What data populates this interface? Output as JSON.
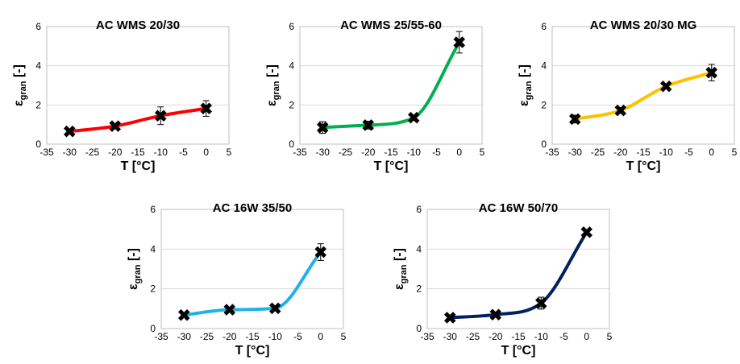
{
  "chart_data": [
    {
      "type": "line",
      "title": "AC WMS 20/30",
      "xlabel": "T [°C]",
      "ylabel": "ε",
      "ylabel_sub": "gran",
      "ylabel_suffix": " [-]",
      "xlim": [
        -35,
        5
      ],
      "ylim": [
        0,
        6
      ],
      "xticks": [
        -35,
        -30,
        -25,
        -20,
        -15,
        -10,
        -5,
        0,
        5
      ],
      "yticks": [
        0,
        2,
        4,
        6
      ],
      "grid": "horizontal",
      "color": "#ff0000",
      "x": [
        -30,
        -20,
        -10,
        0
      ],
      "y": [
        0.65,
        0.92,
        1.45,
        1.82
      ],
      "error": [
        0.12,
        0.1,
        0.45,
        0.4
      ]
    },
    {
      "type": "line",
      "title": "AC WMS 25/55-60",
      "xlabel": "T [°C]",
      "ylabel": "ε",
      "ylabel_sub": "gran",
      "ylabel_suffix": " [-]",
      "xlim": [
        -35,
        5
      ],
      "ylim": [
        0,
        6
      ],
      "xticks": [
        -35,
        -30,
        -25,
        -20,
        -15,
        -10,
        -5,
        0,
        5
      ],
      "yticks": [
        0,
        2,
        4,
        6
      ],
      "grid": "horizontal",
      "color": "#00b050",
      "x": [
        -30,
        -20,
        -10,
        0
      ],
      "y": [
        0.85,
        0.97,
        1.35,
        5.2
      ],
      "error": [
        0.3,
        0.2,
        0.1,
        0.55
      ]
    },
    {
      "type": "line",
      "title": "AC WMS 20/30 MG",
      "xlabel": "T [°C]",
      "ylabel": "ε",
      "ylabel_sub": "gran",
      "ylabel_suffix": " [-]",
      "xlim": [
        -35,
        5
      ],
      "ylim": [
        0,
        6
      ],
      "xticks": [
        -35,
        -30,
        -25,
        -20,
        -15,
        -10,
        -5,
        0,
        5
      ],
      "yticks": [
        0,
        2,
        4,
        6
      ],
      "grid": "horizontal",
      "color": "#ffc000",
      "x": [
        -30,
        -20,
        -10,
        0
      ],
      "y": [
        1.28,
        1.72,
        2.95,
        3.65
      ],
      "error": [
        0.2,
        0.15,
        0.1,
        0.42
      ]
    },
    {
      "type": "line",
      "title": "AC 16W 35/50",
      "xlabel": "T [°C]",
      "ylabel": "ε",
      "ylabel_sub": "gran",
      "ylabel_suffix": " [-]",
      "xlim": [
        -35,
        5
      ],
      "ylim": [
        0,
        6
      ],
      "xticks": [
        -35,
        -30,
        -25,
        -20,
        -15,
        -10,
        -5,
        0,
        5
      ],
      "yticks": [
        0,
        2,
        4,
        6
      ],
      "grid": "horizontal",
      "color": "#1fb1e8",
      "x": [
        -30,
        -20,
        -10,
        0
      ],
      "y": [
        0.68,
        0.95,
        1.02,
        3.85
      ],
      "error": [
        0.08,
        0.1,
        0.1,
        0.42
      ]
    },
    {
      "type": "line",
      "title": "AC 16W 50/70",
      "xlabel": "T [°C]",
      "ylabel": "ε",
      "ylabel_sub": "gran",
      "ylabel_suffix": " [-]",
      "xlim": [
        -35,
        5
      ],
      "ylim": [
        0,
        6
      ],
      "xticks": [
        -35,
        -30,
        -25,
        -20,
        -15,
        -10,
        -5,
        0,
        5
      ],
      "yticks": [
        0,
        2,
        4,
        6
      ],
      "grid": "horizontal",
      "color": "#002060",
      "x": [
        -30,
        -20,
        -10,
        0
      ],
      "y": [
        0.55,
        0.7,
        1.28,
        4.85
      ],
      "error": [
        0.08,
        0.08,
        0.3,
        0.1
      ]
    }
  ]
}
